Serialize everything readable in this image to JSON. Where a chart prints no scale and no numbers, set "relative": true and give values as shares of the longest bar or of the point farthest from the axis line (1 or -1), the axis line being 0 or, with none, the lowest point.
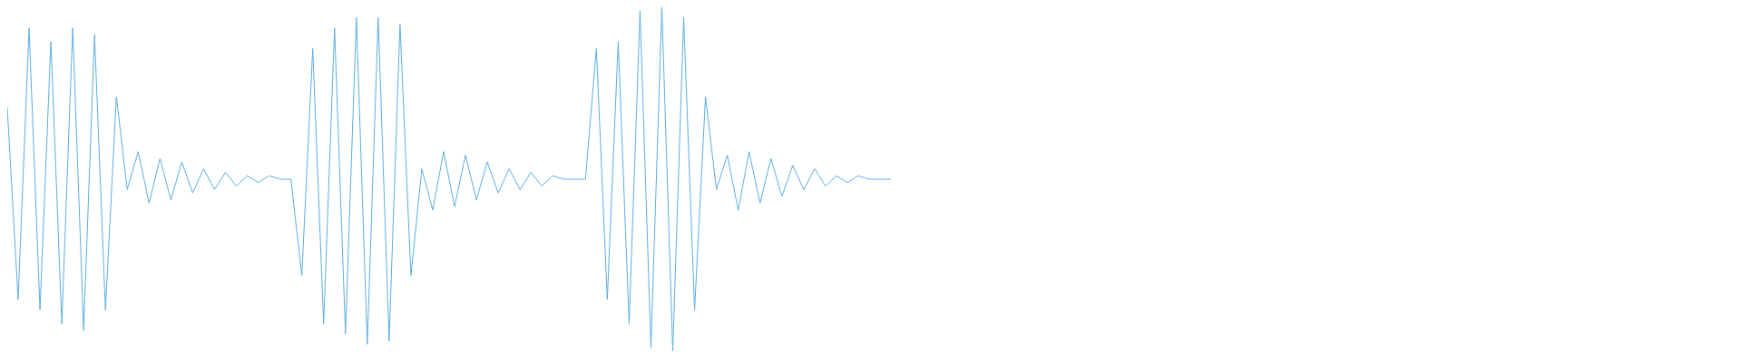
{
  "chart_data": {
    "type": "line",
    "relative": true,
    "legend": false,
    "marker": "none",
    "categories": [
      null,
      null,
      null,
      null,
      null,
      null,
      null,
      null,
      null,
      null,
      null,
      null,
      null,
      null,
      null,
      null,
      null,
      null,
      null,
      null,
      null,
      null,
      null,
      null,
      null,
      null,
      null,
      null,
      null,
      null,
      null,
      null,
      null,
      null,
      null,
      null,
      null,
      null,
      null,
      null,
      null,
      null,
      null,
      null,
      null,
      null,
      null,
      null,
      null,
      null,
      null,
      null,
      null,
      null,
      null,
      null,
      null,
      null,
      null,
      null,
      null,
      null,
      null,
      null,
      null,
      null,
      null,
      null,
      null,
      null,
      null,
      null,
      null,
      null,
      null,
      null,
      null,
      null,
      null,
      null,
      null,
      null
    ],
    "series": [
      {
        "color": "#5dade2",
        "values": [
          0.71,
          0.15,
          0.94,
          0.12,
          0.9,
          0.08,
          0.94,
          0.06,
          0.92,
          0.12,
          0.74,
          0.47,
          0.58,
          0.43,
          0.56,
          0.44,
          0.55,
          0.46,
          0.53,
          0.47,
          0.52,
          0.48,
          0.51,
          0.49,
          0.51,
          0.5,
          0.5,
          0.22,
          0.88,
          0.08,
          0.94,
          0.05,
          0.97,
          0.02,
          0.97,
          0.03,
          0.95,
          0.22,
          0.53,
          0.41,
          0.58,
          0.42,
          0.57,
          0.44,
          0.55,
          0.46,
          0.53,
          0.47,
          0.52,
          0.48,
          0.51,
          0.5,
          0.5,
          0.5,
          0.88,
          0.15,
          0.9,
          0.08,
          0.99,
          0.01,
          1,
          0,
          0.97,
          0.12,
          0.74,
          0.47,
          0.57,
          0.41,
          0.58,
          0.43,
          0.56,
          0.45,
          0.54,
          0.47,
          0.53,
          0.48,
          0.51,
          0.49,
          0.51,
          0.5,
          0.5,
          0.5
        ]
      }
    ]
  }
}
